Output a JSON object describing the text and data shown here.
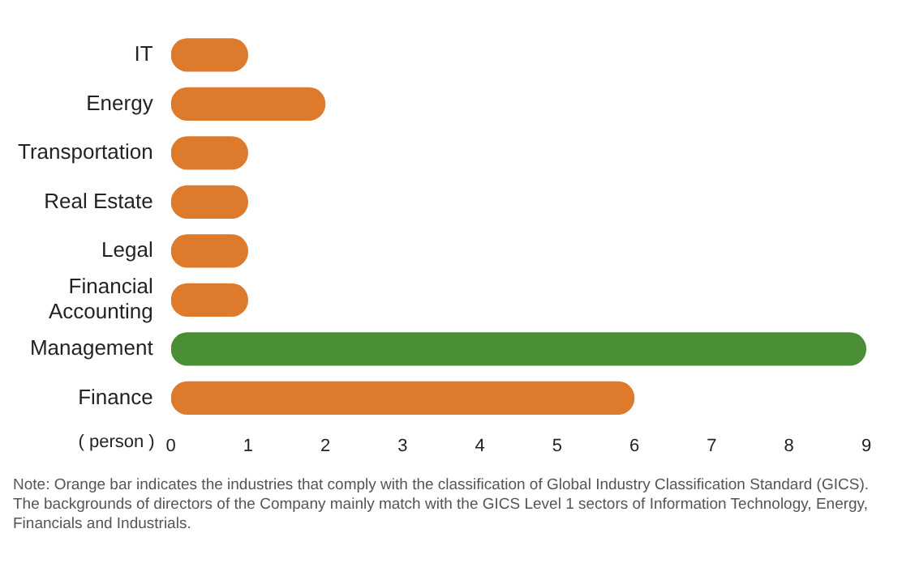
{
  "chart_data": {
    "type": "bar",
    "orientation": "horizontal",
    "categories": [
      "IT",
      "Energy",
      "Transportation",
      "Real Estate",
      "Legal",
      "Financial Accounting",
      "Management",
      "Finance"
    ],
    "values": [
      1,
      2,
      1,
      1,
      1,
      1,
      9,
      6
    ],
    "colors": [
      "#dd7a2c",
      "#dd7a2c",
      "#dd7a2c",
      "#dd7a2c",
      "#dd7a2c",
      "#dd7a2c",
      "#4a8f36",
      "#dd7a2c"
    ],
    "xlabel": "( person )",
    "xlim": [
      0,
      9
    ],
    "xticks": [
      0,
      1,
      2,
      3,
      4,
      5,
      6,
      7,
      8,
      9
    ],
    "grid": false,
    "legend": false,
    "annotations": [
      "Note: Orange bar indicates the industries that comply with the classification of Global Industry Classification Standard (GICS). The backgrounds of directors of the Company mainly match with the GICS Level 1 sectors of Information Technology, Energy, Financials and Industrials."
    ]
  }
}
